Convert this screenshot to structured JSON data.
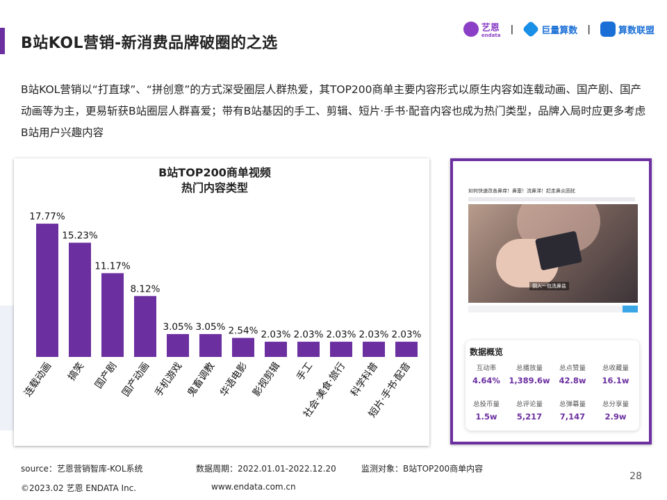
{
  "header": {
    "title": "B站KOL营销-新消费品牌破圈的之选",
    "logos": [
      {
        "name": "艺恩",
        "sub": "endata",
        "color": "#8a3fc6"
      },
      {
        "name": "巨量算数",
        "color": "#1a6fd6"
      },
      {
        "name": "算数联盟",
        "color": "#1a6fd6"
      }
    ],
    "separator": "|"
  },
  "intro": "B站KOL营销以“打直球”、“拼创意”的方式深受圈层人群热爱，其TOP200商单主要内容形式以原生内容如连载动画、国产剧、国产动画等为主，更易斩获B站圈层人群喜爱；带有B站基因的手工、剪辑、短片·手书·配音内容也成为热门类型，品牌入局时应更多考虑B站用户兴趣内容",
  "chart_data": {
    "type": "bar",
    "title": "B站TOP200商单视频\n热门内容类型",
    "categories": [
      "连载动画",
      "搞笑",
      "国产剧",
      "国产动画",
      "手机游戏",
      "鬼畜调教",
      "华语电影",
      "影视剪辑",
      "手工",
      "社会·美食·旅行",
      "科学科普",
      "短片·手书·配音"
    ],
    "values": [
      17.77,
      15.23,
      11.17,
      8.12,
      3.05,
      3.05,
      2.54,
      2.03,
      2.03,
      2.03,
      2.03,
      2.03
    ],
    "value_labels": [
      "17.77%",
      "15.23%",
      "11.17%",
      "8.12%",
      "3.05%",
      "3.05%",
      "2.54%",
      "2.03%",
      "2.03%",
      "2.03%",
      "2.03%",
      "2.03%"
    ],
    "xlabel": "",
    "ylabel": "",
    "ylim": [
      0,
      20
    ],
    "grid": false,
    "bar_color": "#6b2fa0"
  },
  "screenshot": {
    "video_title": "如何快速改善鼻痒！鼻塞！流鼻涕！赶走鼻炎困扰",
    "caption": "倒入一包洗鼻盐",
    "stats_heading": "数据概览",
    "stats": [
      {
        "label": "互动率",
        "value": "4.64%"
      },
      {
        "label": "总播放量",
        "value": "1,389.6w"
      },
      {
        "label": "总点赞量",
        "value": "42.8w"
      },
      {
        "label": "总收藏量",
        "value": "16.1w"
      },
      {
        "label": "总投币量",
        "value": "1.5w"
      },
      {
        "label": "总评论量",
        "value": "5,217"
      },
      {
        "label": "总弹幕量",
        "value": "7,147"
      },
      {
        "label": "总分享量",
        "value": "2.9w"
      }
    ]
  },
  "footer": {
    "source": "source：艺恩营销智库-KOL系统",
    "period": "数据周期：2022.01.01-2022.12.20",
    "object": "监测对象：B站TOP200商单内容",
    "copyright": "©2023.02 艺恩 ENDATA Inc.",
    "website": "www.endata.com.cn",
    "page": "28"
  }
}
